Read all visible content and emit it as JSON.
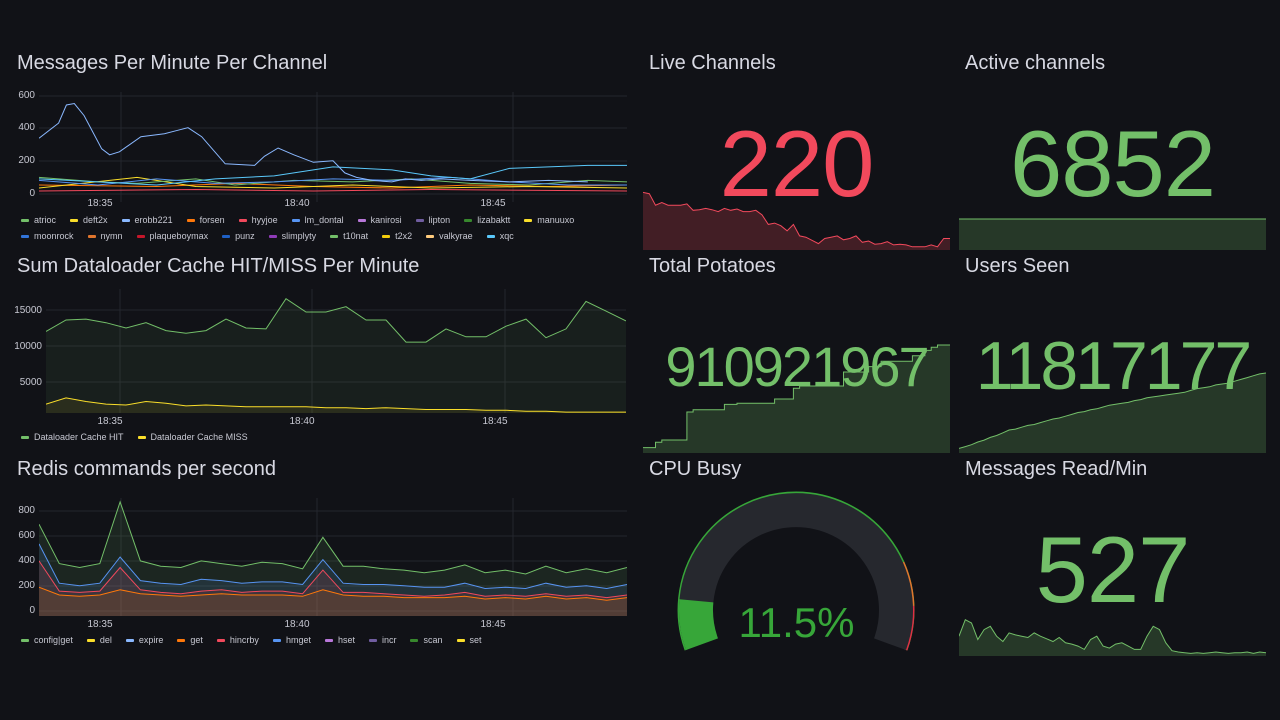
{
  "colors": {
    "bg": "#111217",
    "grid": "#24262d",
    "green": "#73bf69",
    "red": "#f2495c",
    "gauge_green": "#37a639",
    "gauge_track": "#26282e",
    "gauge_orange": "#e0752d",
    "gauge_red": "#e02f44"
  },
  "x_ticks": [
    "18:35",
    "18:40",
    "18:45"
  ],
  "panels": {
    "messages": {
      "title": "Messages Per Minute Per Channel",
      "y_ticks": [
        "600",
        "400",
        "200",
        "0"
      ],
      "legend": [
        {
          "label": "atrioc",
          "color": "#73bf69"
        },
        {
          "label": "deft2x",
          "color": "#fade2a"
        },
        {
          "label": "erobb221",
          "color": "#8ab8ff"
        },
        {
          "label": "forsen",
          "color": "#ff780a"
        },
        {
          "label": "hyyjoe",
          "color": "#f2495c"
        },
        {
          "label": "lm_dontal",
          "color": "#5794f2"
        },
        {
          "label": "kanirosi",
          "color": "#b877d9"
        },
        {
          "label": "lipton",
          "color": "#705da0"
        },
        {
          "label": "lizabaktt",
          "color": "#37872d"
        },
        {
          "label": "manuuxo",
          "color": "#fade2a"
        },
        {
          "label": "moonrock",
          "color": "#3274d9"
        },
        {
          "label": "nymn",
          "color": "#e0752d"
        },
        {
          "label": "plaqueboymax",
          "color": "#c4162a"
        },
        {
          "label": "punz",
          "color": "#1f60c4"
        },
        {
          "label": "slimplyty",
          "color": "#8f3bb8"
        },
        {
          "label": "t10nat",
          "color": "#73bf69"
        },
        {
          "label": "t2x2",
          "color": "#f2cc0c"
        },
        {
          "label": "valkyrae",
          "color": "#ffcb7d"
        },
        {
          "label": "xqc",
          "color": "#5ac8fa"
        }
      ]
    },
    "live": {
      "title": "Live Channels",
      "value": "220"
    },
    "active": {
      "title": "Active channels",
      "value": "6852"
    },
    "cache": {
      "title": "Sum Dataloader Cache HIT/MISS Per Minute",
      "y_ticks": [
        "15000",
        "10000",
        "5000"
      ],
      "legend": [
        {
          "label": "Dataloader Cache HIT",
          "color": "#73bf69"
        },
        {
          "label": "Dataloader Cache MISS",
          "color": "#fade2a"
        }
      ]
    },
    "potatoes": {
      "title": "Total Potatoes",
      "value": "910921967"
    },
    "users": {
      "title": "Users Seen",
      "value": "11817177"
    },
    "redis": {
      "title": "Redis commands per second",
      "y_ticks": [
        "800",
        "600",
        "400",
        "200",
        "0"
      ],
      "legend": [
        {
          "label": "config|get",
          "color": "#73bf69"
        },
        {
          "label": "del",
          "color": "#fade2a"
        },
        {
          "label": "expire",
          "color": "#8ab8ff"
        },
        {
          "label": "get",
          "color": "#ff780a"
        },
        {
          "label": "hincrby",
          "color": "#f2495c"
        },
        {
          "label": "hmget",
          "color": "#5794f2"
        },
        {
          "label": "hset",
          "color": "#b877d9"
        },
        {
          "label": "incr",
          "color": "#705da0"
        },
        {
          "label": "scan",
          "color": "#37872d"
        },
        {
          "label": "set",
          "color": "#fade2a"
        }
      ]
    },
    "cpu": {
      "title": "CPU Busy",
      "value": "11.5%",
      "percent": 11.5
    },
    "msgread": {
      "title": "Messages Read/Min",
      "value": "527"
    }
  },
  "chart_data": [
    {
      "type": "line",
      "title": "Messages Per Minute Per Channel",
      "ylim": [
        0,
        650
      ],
      "xlim_minutes": [
        0,
        17
      ],
      "series": [
        {
          "name": "erobb221",
          "values": [
            [
              0,
              370
            ],
            [
              1,
              470
            ],
            [
              1.4,
              590
            ],
            [
              1.8,
              600
            ],
            [
              2.3,
              520
            ],
            [
              3.2,
              300
            ],
            [
              3.6,
              260
            ],
            [
              4.1,
              280
            ],
            [
              5.2,
              380
            ],
            [
              6.4,
              400
            ],
            [
              7,
              420
            ],
            [
              7.6,
              440
            ],
            [
              8.3,
              380
            ],
            [
              9.5,
              200
            ],
            [
              11,
              190
            ],
            [
              11.5,
              250
            ],
            [
              12.2,
              305
            ],
            [
              13,
              260
            ],
            [
              14,
              210
            ],
            [
              15,
              220
            ],
            [
              15.6,
              140
            ],
            [
              16.2,
              110
            ],
            [
              17,
              90
            ],
            [
              18,
              80
            ],
            [
              18.7,
              100
            ],
            [
              19.5,
              90
            ],
            [
              20.5,
              100
            ],
            [
              22,
              90
            ],
            [
              24,
              80
            ],
            [
              26,
              90
            ],
            [
              28,
              80
            ]
          ]
        },
        {
          "name": "xqc",
          "values": [
            [
              0,
              100
            ],
            [
              3,
              80
            ],
            [
              6,
              60
            ],
            [
              9,
              100
            ],
            [
              12,
              120
            ],
            [
              15,
              180
            ],
            [
              18,
              160
            ],
            [
              20,
              120
            ],
            [
              22,
              100
            ],
            [
              24,
              170
            ],
            [
              26,
              180
            ],
            [
              28,
              190
            ],
            [
              30,
              190
            ]
          ]
        },
        {
          "name": "lm_dontal",
          "values": [
            [
              0,
              90
            ],
            [
              3,
              60
            ],
            [
              6,
              100
            ],
            [
              9,
              70
            ],
            [
              12,
              80
            ],
            [
              15,
              100
            ],
            [
              18,
              90
            ],
            [
              21,
              110
            ],
            [
              24,
              80
            ],
            [
              27,
              60
            ],
            [
              30,
              60
            ]
          ]
        },
        {
          "name": "atrioc",
          "values": [
            [
              0,
              110
            ],
            [
              3,
              80
            ],
            [
              5,
              70
            ],
            [
              8,
              100
            ],
            [
              10,
              60
            ],
            [
              13,
              90
            ],
            [
              16,
              80
            ],
            [
              19,
              100
            ],
            [
              22,
              70
            ],
            [
              25,
              60
            ],
            [
              28,
              90
            ],
            [
              30,
              80
            ]
          ]
        },
        {
          "name": "deft2x",
          "values": [
            [
              0,
              40
            ],
            [
              5,
              110
            ],
            [
              8,
              50
            ],
            [
              12,
              40
            ],
            [
              16,
              60
            ],
            [
              20,
              40
            ],
            [
              25,
              50
            ],
            [
              30,
              40
            ]
          ]
        },
        {
          "name": "forsen",
          "values": [
            [
              0,
              60
            ],
            [
              6,
              50
            ],
            [
              10,
              70
            ],
            [
              14,
              50
            ],
            [
              18,
              40
            ],
            [
              22,
              60
            ],
            [
              26,
              50
            ],
            [
              30,
              60
            ]
          ]
        },
        {
          "name": "hyyjoe",
          "values": [
            [
              0,
              20
            ],
            [
              8,
              30
            ],
            [
              14,
              20
            ],
            [
              20,
              30
            ],
            [
              30,
              20
            ]
          ]
        }
      ]
    },
    {
      "type": "area",
      "title": "Sum Dataloader Cache HIT/MISS Per Minute",
      "ylim": [
        3000,
        17000
      ],
      "xlim_minutes": [
        0,
        30
      ],
      "series": [
        {
          "name": "Dataloader Cache HIT",
          "values": [
            12200,
            13500,
            13600,
            13200,
            12600,
            13200,
            12300,
            12000,
            12300,
            13600,
            12600,
            12500,
            15900,
            14400,
            14400,
            15000,
            13500,
            13500,
            11000,
            11000,
            12500,
            11600,
            11600,
            12800,
            13600,
            11500,
            12500,
            15600,
            14500,
            13400
          ]
        },
        {
          "name": "Dataloader Cache MISS",
          "values": [
            4000,
            4700,
            4300,
            4000,
            3900,
            4300,
            4100,
            3800,
            3900,
            3800,
            3700,
            3700,
            3700,
            3700,
            3600,
            3600,
            3500,
            3600,
            3500,
            3400,
            3400,
            3400,
            3300,
            3300,
            3200,
            3200,
            3100,
            3100,
            3100,
            3100
          ]
        }
      ]
    },
    {
      "type": "area",
      "title": "Redis commands per second",
      "ylim": [
        0,
        900
      ],
      "xlim_minutes": [
        0,
        30
      ],
      "series": [
        {
          "name": "config|get",
          "values": [
            700,
            400,
            370,
            400,
            870,
            420,
            380,
            370,
            420,
            400,
            380,
            410,
            400,
            360,
            600,
            380,
            380,
            360,
            350,
            330,
            350,
            390,
            330,
            350,
            320,
            380,
            330,
            360,
            330,
            370
          ]
        },
        {
          "name": "hmget",
          "values": [
            550,
            250,
            230,
            250,
            450,
            270,
            250,
            240,
            280,
            270,
            250,
            260,
            260,
            240,
            430,
            250,
            240,
            240,
            230,
            220,
            220,
            250,
            210,
            220,
            210,
            250,
            220,
            230,
            210,
            240
          ]
        },
        {
          "name": "hincrby",
          "values": [
            420,
            190,
            180,
            190,
            370,
            200,
            180,
            170,
            190,
            200,
            180,
            190,
            190,
            170,
            350,
            180,
            180,
            170,
            160,
            150,
            160,
            180,
            150,
            160,
            150,
            170,
            150,
            160,
            140,
            160
          ]
        },
        {
          "name": "get",
          "values": [
            220,
            160,
            150,
            160,
            200,
            170,
            160,
            150,
            160,
            170,
            160,
            160,
            160,
            150,
            200,
            160,
            150,
            150,
            140,
            140,
            140,
            150,
            130,
            140,
            130,
            150,
            130,
            140,
            120,
            140
          ]
        }
      ]
    },
    {
      "type": "area",
      "title": "Live Channels (sparkline)",
      "ylim": [
        0,
        100
      ],
      "values": [
        90,
        88,
        70,
        74,
        70,
        70,
        70,
        72,
        62,
        63,
        65,
        63,
        60,
        65,
        62,
        64,
        60,
        60,
        62,
        55,
        40,
        42,
        38,
        30,
        40,
        22,
        20,
        15,
        10,
        18,
        20,
        22,
        16,
        18,
        22,
        12,
        14,
        9,
        10,
        13,
        8,
        9,
        8,
        5,
        5,
        5,
        8,
        5,
        18,
        18
      ]
    },
    {
      "type": "area",
      "title": "Total Potatoes (sparkline)",
      "ylim": [
        0,
        100
      ],
      "values": [
        5,
        5,
        10,
        12,
        12,
        12,
        12,
        38,
        40,
        40,
        40,
        40,
        40,
        45,
        45,
        46,
        46,
        46,
        46,
        46,
        46,
        50,
        50,
        50,
        60,
        62,
        62,
        62,
        62,
        62,
        62,
        62,
        75,
        75,
        75,
        75,
        80,
        80,
        85,
        85,
        85,
        85,
        85,
        90,
        90,
        95,
        98,
        100,
        100,
        100
      ]
    },
    {
      "type": "area",
      "title": "Users Seen (sparkline)",
      "ylim": [
        0,
        100
      ],
      "values": [
        5,
        7,
        9,
        12,
        14,
        17,
        19,
        22,
        25,
        26,
        28,
        30,
        31,
        33,
        35,
        37,
        38,
        40,
        42,
        44,
        45,
        47,
        48,
        50,
        52,
        53,
        54,
        55,
        57,
        58,
        60,
        61,
        62,
        63,
        64,
        65,
        66,
        68,
        70,
        71,
        72,
        74,
        75,
        76,
        78,
        80,
        82,
        84,
        86,
        87
      ]
    },
    {
      "type": "area",
      "title": "Messages Read/Min (sparkline)",
      "ylim": [
        0,
        100
      ],
      "values": [
        30,
        55,
        50,
        25,
        40,
        45,
        30,
        22,
        35,
        32,
        30,
        28,
        35,
        30,
        26,
        22,
        28,
        20,
        18,
        15,
        10,
        25,
        30,
        15,
        12,
        18,
        20,
        15,
        10,
        10,
        30,
        45,
        40,
        20,
        8,
        6,
        5,
        4,
        5,
        4,
        5,
        6,
        5,
        4,
        5,
        5,
        6,
        4,
        6,
        5
      ]
    }
  ]
}
